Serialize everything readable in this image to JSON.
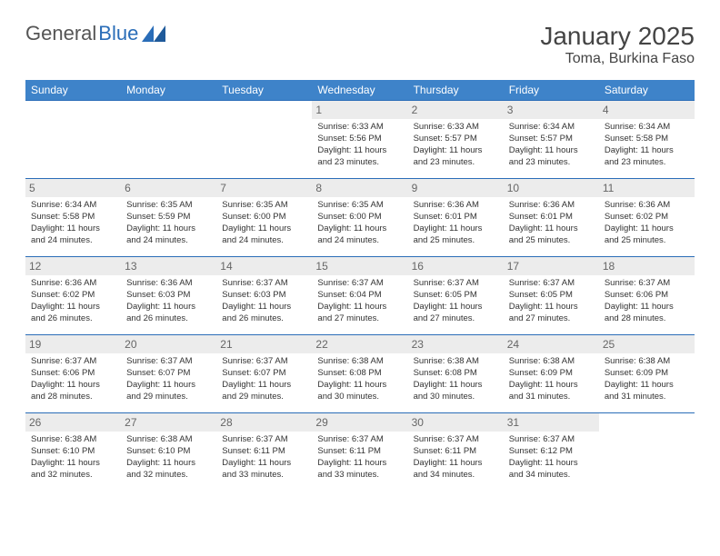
{
  "brand": {
    "part1": "General",
    "part2": "Blue"
  },
  "title": "January 2025",
  "location": "Toma, Burkina Faso",
  "colors": {
    "header_bg": "#3e83c9",
    "header_text": "#ffffff",
    "daynum_bg": "#ececec",
    "daynum_text": "#666666",
    "border": "#2a6db8",
    "brand_blue": "#2a6db8"
  },
  "weekdays": [
    "Sunday",
    "Monday",
    "Tuesday",
    "Wednesday",
    "Thursday",
    "Friday",
    "Saturday"
  ],
  "weeks": [
    [
      {
        "n": "",
        "l1": "",
        "l2": "",
        "l3": "",
        "l4": ""
      },
      {
        "n": "",
        "l1": "",
        "l2": "",
        "l3": "",
        "l4": ""
      },
      {
        "n": "",
        "l1": "",
        "l2": "",
        "l3": "",
        "l4": ""
      },
      {
        "n": "1",
        "l1": "Sunrise: 6:33 AM",
        "l2": "Sunset: 5:56 PM",
        "l3": "Daylight: 11 hours",
        "l4": "and 23 minutes."
      },
      {
        "n": "2",
        "l1": "Sunrise: 6:33 AM",
        "l2": "Sunset: 5:57 PM",
        "l3": "Daylight: 11 hours",
        "l4": "and 23 minutes."
      },
      {
        "n": "3",
        "l1": "Sunrise: 6:34 AM",
        "l2": "Sunset: 5:57 PM",
        "l3": "Daylight: 11 hours",
        "l4": "and 23 minutes."
      },
      {
        "n": "4",
        "l1": "Sunrise: 6:34 AM",
        "l2": "Sunset: 5:58 PM",
        "l3": "Daylight: 11 hours",
        "l4": "and 23 minutes."
      }
    ],
    [
      {
        "n": "5",
        "l1": "Sunrise: 6:34 AM",
        "l2": "Sunset: 5:58 PM",
        "l3": "Daylight: 11 hours",
        "l4": "and 24 minutes."
      },
      {
        "n": "6",
        "l1": "Sunrise: 6:35 AM",
        "l2": "Sunset: 5:59 PM",
        "l3": "Daylight: 11 hours",
        "l4": "and 24 minutes."
      },
      {
        "n": "7",
        "l1": "Sunrise: 6:35 AM",
        "l2": "Sunset: 6:00 PM",
        "l3": "Daylight: 11 hours",
        "l4": "and 24 minutes."
      },
      {
        "n": "8",
        "l1": "Sunrise: 6:35 AM",
        "l2": "Sunset: 6:00 PM",
        "l3": "Daylight: 11 hours",
        "l4": "and 24 minutes."
      },
      {
        "n": "9",
        "l1": "Sunrise: 6:36 AM",
        "l2": "Sunset: 6:01 PM",
        "l3": "Daylight: 11 hours",
        "l4": "and 25 minutes."
      },
      {
        "n": "10",
        "l1": "Sunrise: 6:36 AM",
        "l2": "Sunset: 6:01 PM",
        "l3": "Daylight: 11 hours",
        "l4": "and 25 minutes."
      },
      {
        "n": "11",
        "l1": "Sunrise: 6:36 AM",
        "l2": "Sunset: 6:02 PM",
        "l3": "Daylight: 11 hours",
        "l4": "and 25 minutes."
      }
    ],
    [
      {
        "n": "12",
        "l1": "Sunrise: 6:36 AM",
        "l2": "Sunset: 6:02 PM",
        "l3": "Daylight: 11 hours",
        "l4": "and 26 minutes."
      },
      {
        "n": "13",
        "l1": "Sunrise: 6:36 AM",
        "l2": "Sunset: 6:03 PM",
        "l3": "Daylight: 11 hours",
        "l4": "and 26 minutes."
      },
      {
        "n": "14",
        "l1": "Sunrise: 6:37 AM",
        "l2": "Sunset: 6:03 PM",
        "l3": "Daylight: 11 hours",
        "l4": "and 26 minutes."
      },
      {
        "n": "15",
        "l1": "Sunrise: 6:37 AM",
        "l2": "Sunset: 6:04 PM",
        "l3": "Daylight: 11 hours",
        "l4": "and 27 minutes."
      },
      {
        "n": "16",
        "l1": "Sunrise: 6:37 AM",
        "l2": "Sunset: 6:05 PM",
        "l3": "Daylight: 11 hours",
        "l4": "and 27 minutes."
      },
      {
        "n": "17",
        "l1": "Sunrise: 6:37 AM",
        "l2": "Sunset: 6:05 PM",
        "l3": "Daylight: 11 hours",
        "l4": "and 27 minutes."
      },
      {
        "n": "18",
        "l1": "Sunrise: 6:37 AM",
        "l2": "Sunset: 6:06 PM",
        "l3": "Daylight: 11 hours",
        "l4": "and 28 minutes."
      }
    ],
    [
      {
        "n": "19",
        "l1": "Sunrise: 6:37 AM",
        "l2": "Sunset: 6:06 PM",
        "l3": "Daylight: 11 hours",
        "l4": "and 28 minutes."
      },
      {
        "n": "20",
        "l1": "Sunrise: 6:37 AM",
        "l2": "Sunset: 6:07 PM",
        "l3": "Daylight: 11 hours",
        "l4": "and 29 minutes."
      },
      {
        "n": "21",
        "l1": "Sunrise: 6:37 AM",
        "l2": "Sunset: 6:07 PM",
        "l3": "Daylight: 11 hours",
        "l4": "and 29 minutes."
      },
      {
        "n": "22",
        "l1": "Sunrise: 6:38 AM",
        "l2": "Sunset: 6:08 PM",
        "l3": "Daylight: 11 hours",
        "l4": "and 30 minutes."
      },
      {
        "n": "23",
        "l1": "Sunrise: 6:38 AM",
        "l2": "Sunset: 6:08 PM",
        "l3": "Daylight: 11 hours",
        "l4": "and 30 minutes."
      },
      {
        "n": "24",
        "l1": "Sunrise: 6:38 AM",
        "l2": "Sunset: 6:09 PM",
        "l3": "Daylight: 11 hours",
        "l4": "and 31 minutes."
      },
      {
        "n": "25",
        "l1": "Sunrise: 6:38 AM",
        "l2": "Sunset: 6:09 PM",
        "l3": "Daylight: 11 hours",
        "l4": "and 31 minutes."
      }
    ],
    [
      {
        "n": "26",
        "l1": "Sunrise: 6:38 AM",
        "l2": "Sunset: 6:10 PM",
        "l3": "Daylight: 11 hours",
        "l4": "and 32 minutes."
      },
      {
        "n": "27",
        "l1": "Sunrise: 6:38 AM",
        "l2": "Sunset: 6:10 PM",
        "l3": "Daylight: 11 hours",
        "l4": "and 32 minutes."
      },
      {
        "n": "28",
        "l1": "Sunrise: 6:37 AM",
        "l2": "Sunset: 6:11 PM",
        "l3": "Daylight: 11 hours",
        "l4": "and 33 minutes."
      },
      {
        "n": "29",
        "l1": "Sunrise: 6:37 AM",
        "l2": "Sunset: 6:11 PM",
        "l3": "Daylight: 11 hours",
        "l4": "and 33 minutes."
      },
      {
        "n": "30",
        "l1": "Sunrise: 6:37 AM",
        "l2": "Sunset: 6:11 PM",
        "l3": "Daylight: 11 hours",
        "l4": "and 34 minutes."
      },
      {
        "n": "31",
        "l1": "Sunrise: 6:37 AM",
        "l2": "Sunset: 6:12 PM",
        "l3": "Daylight: 11 hours",
        "l4": "and 34 minutes."
      },
      {
        "n": "",
        "l1": "",
        "l2": "",
        "l3": "",
        "l4": ""
      }
    ]
  ]
}
